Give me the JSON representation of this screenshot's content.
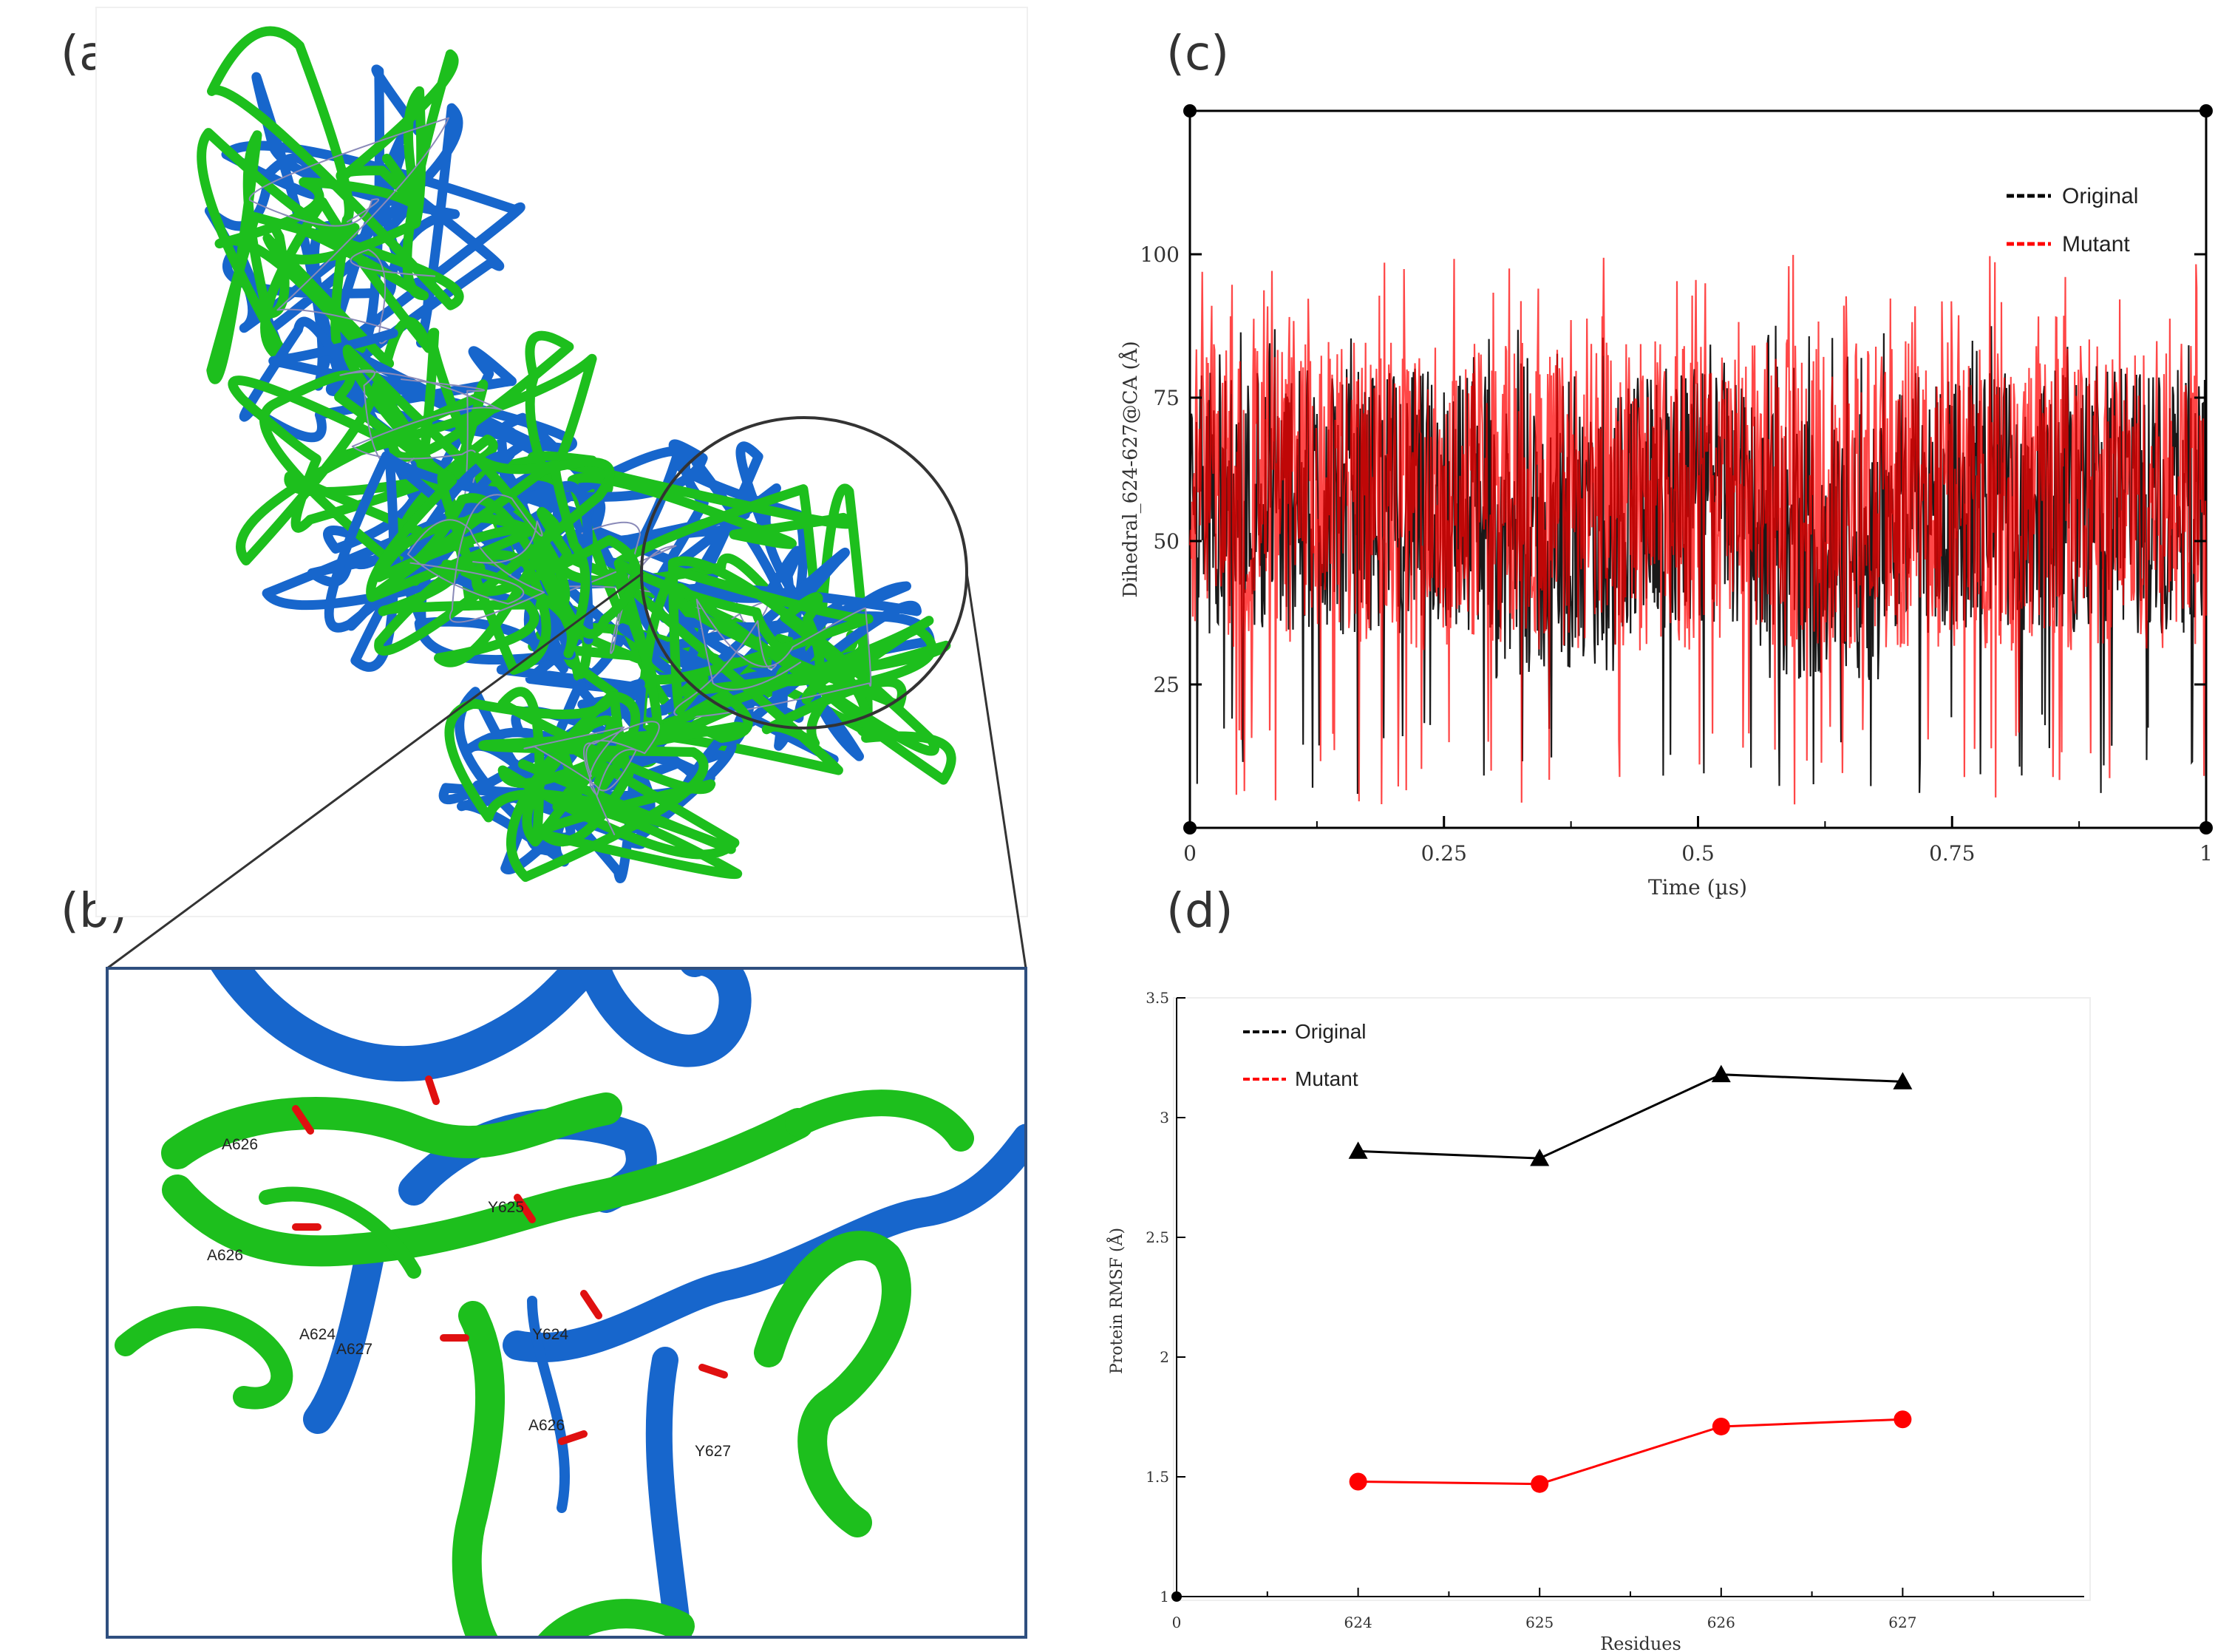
{
  "panels": {
    "a": {
      "label": "(a)"
    },
    "b": {
      "label": "(b)",
      "residue_labels": [
        "A626",
        "Y625",
        "A626",
        "A624",
        "A627",
        "Y624",
        "A626",
        "Y627"
      ]
    },
    "c": {
      "label": "(c)"
    },
    "d": {
      "label": "(d)"
    }
  },
  "colors": {
    "protein_green": "#1dbf1d",
    "protein_blue": "#1766cc",
    "oxygen_red": "#e01010",
    "original_series": "#000000",
    "mutant_series": "#ff0000",
    "frame": "#2f4f7f"
  },
  "chart_data": [
    {
      "type": "line",
      "panel": "c",
      "xlabel": "Time (µs)",
      "ylabel": "Dihedral_624-627@CA (Å)",
      "xlim": [
        0,
        1
      ],
      "ylim": [
        0,
        125
      ],
      "x_ticks": [
        "0",
        "0.25",
        "0.5",
        "0.75",
        "1"
      ],
      "y_ticks": [
        "25",
        "50",
        "75",
        "100"
      ],
      "legend_position": "top-right",
      "series": [
        {
          "name": "Original",
          "color": "#000000",
          "mean": 57,
          "min": 5,
          "max": 88
        },
        {
          "name": "Mutant",
          "color": "#ff0000",
          "mean": 58,
          "min": 3,
          "max": 100
        }
      ]
    },
    {
      "type": "line",
      "panel": "d",
      "xlabel": "Residues",
      "ylabel": "Protein RMSF (Å)",
      "xlim": [
        623,
        628
      ],
      "ylim": [
        1,
        3.5
      ],
      "x_ticks": [
        "0",
        "624",
        "625",
        "626",
        "627"
      ],
      "y_ticks": [
        "1",
        "1.5",
        "2",
        "2.5",
        "3",
        "3.5"
      ],
      "categories": [
        624,
        625,
        626,
        627
      ],
      "legend_position": "top-left",
      "series": [
        {
          "name": "Original",
          "color": "#000000",
          "marker": "triangle",
          "values": [
            2.86,
            2.83,
            3.18,
            3.15
          ]
        },
        {
          "name": "Mutant",
          "color": "#ff0000",
          "marker": "circle",
          "values": [
            1.48,
            1.47,
            1.71,
            1.74
          ]
        }
      ]
    }
  ]
}
